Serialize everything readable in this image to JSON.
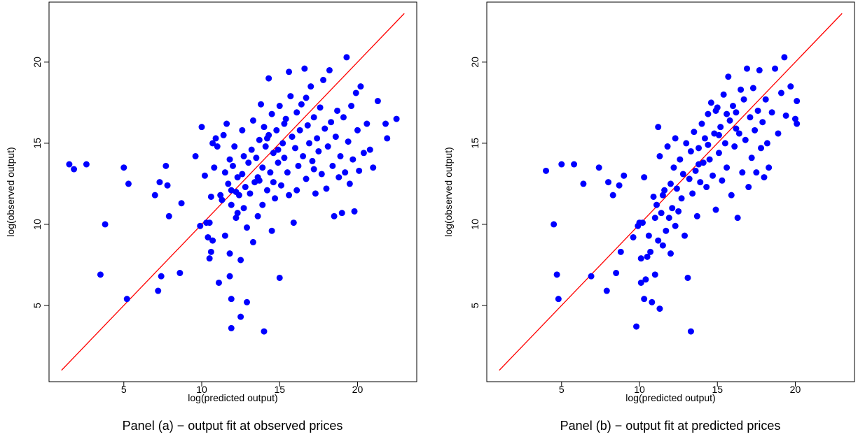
{
  "colors": {
    "points": "#0000ff",
    "fit_line": "#ff0000",
    "frame": "#000000"
  },
  "chart_data": [
    {
      "type": "scatter",
      "title": "",
      "caption": "Panel (a) − output fit at observed prices",
      "xlabel": "log(predicted output)",
      "ylabel": "log(observed output)",
      "xlim": [
        0.2,
        23.8
      ],
      "ylim": [
        0.3,
        23.7
      ],
      "xticks": [
        5,
        10,
        15,
        20
      ],
      "yticks": [
        5,
        10,
        15,
        20
      ],
      "grid": false,
      "reference_line": [
        [
          1,
          1
        ],
        [
          23,
          23
        ]
      ],
      "points": [
        [
          1.5,
          13.7
        ],
        [
          1.8,
          13.4
        ],
        [
          2.6,
          13.7
        ],
        [
          3.5,
          6.9
        ],
        [
          3.8,
          10.0
        ],
        [
          5.0,
          13.5
        ],
        [
          5.3,
          12.5
        ],
        [
          5.2,
          5.4
        ],
        [
          7.0,
          11.8
        ],
        [
          7.2,
          5.9
        ],
        [
          7.3,
          12.6
        ],
        [
          7.4,
          6.8
        ],
        [
          7.7,
          13.6
        ],
        [
          7.8,
          12.4
        ],
        [
          7.9,
          10.5
        ],
        [
          8.6,
          7.0
        ],
        [
          8.7,
          11.3
        ],
        [
          9.6,
          14.2
        ],
        [
          9.9,
          9.9
        ],
        [
          10.0,
          16.0
        ],
        [
          10.2,
          13.0
        ],
        [
          10.3,
          10.1
        ],
        [
          10.4,
          9.2
        ],
        [
          10.5,
          7.9
        ],
        [
          10.5,
          10.1
        ],
        [
          10.6,
          11.7
        ],
        [
          10.6,
          8.3
        ],
        [
          10.7,
          9.0
        ],
        [
          10.7,
          15.0
        ],
        [
          10.8,
          13.5
        ],
        [
          10.9,
          15.3
        ],
        [
          11.0,
          14.8
        ],
        [
          11.1,
          6.4
        ],
        [
          11.2,
          11.8
        ],
        [
          11.3,
          11.5
        ],
        [
          11.4,
          15.5
        ],
        [
          11.5,
          9.3
        ],
        [
          11.5,
          13.2
        ],
        [
          11.6,
          16.2
        ],
        [
          11.7,
          12.5
        ],
        [
          11.8,
          14.0
        ],
        [
          11.8,
          8.2
        ],
        [
          11.8,
          6.8
        ],
        [
          11.9,
          5.4
        ],
        [
          11.9,
          3.6
        ],
        [
          11.9,
          12.1
        ],
        [
          11.9,
          11.2
        ],
        [
          12.0,
          13.6
        ],
        [
          12.1,
          14.8
        ],
        [
          12.2,
          12.0
        ],
        [
          12.2,
          10.4
        ],
        [
          12.3,
          10.7
        ],
        [
          12.3,
          12.9
        ],
        [
          12.4,
          11.8
        ],
        [
          12.5,
          4.3
        ],
        [
          12.5,
          7.8
        ],
        [
          12.6,
          15.8
        ],
        [
          12.6,
          13.1
        ],
        [
          12.7,
          14.2
        ],
        [
          12.7,
          11.0
        ],
        [
          12.8,
          12.3
        ],
        [
          12.9,
          9.8
        ],
        [
          12.9,
          5.2
        ],
        [
          13.0,
          13.8
        ],
        [
          13.1,
          11.9
        ],
        [
          13.2,
          14.6
        ],
        [
          13.3,
          16.4
        ],
        [
          13.3,
          8.9
        ],
        [
          13.4,
          12.6
        ],
        [
          13.5,
          14.1
        ],
        [
          13.6,
          10.5
        ],
        [
          13.6,
          12.9
        ],
        [
          13.7,
          15.2
        ],
        [
          13.8,
          17.4
        ],
        [
          13.9,
          13.5
        ],
        [
          13.9,
          11.2
        ],
        [
          14.0,
          16.0
        ],
        [
          14.0,
          3.4
        ],
        [
          14.1,
          14.8
        ],
        [
          14.2,
          12.1
        ],
        [
          14.3,
          19.0
        ],
        [
          14.3,
          15.5
        ],
        [
          14.4,
          13.2
        ],
        [
          14.5,
          9.6
        ],
        [
          14.5,
          16.8
        ],
        [
          14.6,
          14.4
        ],
        [
          14.7,
          11.6
        ],
        [
          14.8,
          15.8
        ],
        [
          14.9,
          13.8
        ],
        [
          15.0,
          6.7
        ],
        [
          15.0,
          17.3
        ],
        [
          15.1,
          12.4
        ],
        [
          15.2,
          15.0
        ],
        [
          15.3,
          14.1
        ],
        [
          15.4,
          16.5
        ],
        [
          15.5,
          13.2
        ],
        [
          15.6,
          19.4
        ],
        [
          15.6,
          11.8
        ],
        [
          15.7,
          17.9
        ],
        [
          15.8,
          15.4
        ],
        [
          15.9,
          10.1
        ],
        [
          16.0,
          14.7
        ],
        [
          16.1,
          16.9
        ],
        [
          16.2,
          13.6
        ],
        [
          16.3,
          15.8
        ],
        [
          16.4,
          17.4
        ],
        [
          16.5,
          14.2
        ],
        [
          16.6,
          19.6
        ],
        [
          16.7,
          12.8
        ],
        [
          16.8,
          16.1
        ],
        [
          16.9,
          15.0
        ],
        [
          17.0,
          18.5
        ],
        [
          17.1,
          13.9
        ],
        [
          17.2,
          16.6
        ],
        [
          17.3,
          11.9
        ],
        [
          17.4,
          15.3
        ],
        [
          17.5,
          14.5
        ],
        [
          17.6,
          17.2
        ],
        [
          17.7,
          13.1
        ],
        [
          17.8,
          18.9
        ],
        [
          17.9,
          15.9
        ],
        [
          18.0,
          12.2
        ],
        [
          18.1,
          14.8
        ],
        [
          18.2,
          19.5
        ],
        [
          18.3,
          16.3
        ],
        [
          18.4,
          13.6
        ],
        [
          18.5,
          10.5
        ],
        [
          18.6,
          15.4
        ],
        [
          18.7,
          17.0
        ],
        [
          18.8,
          12.9
        ],
        [
          18.9,
          14.2
        ],
        [
          19.0,
          10.7
        ],
        [
          19.1,
          16.6
        ],
        [
          19.2,
          13.2
        ],
        [
          19.3,
          20.3
        ],
        [
          19.4,
          15.1
        ],
        [
          19.5,
          12.5
        ],
        [
          19.6,
          17.3
        ],
        [
          19.7,
          14.0
        ],
        [
          19.8,
          10.8
        ],
        [
          19.9,
          18.1
        ],
        [
          20.0,
          15.8
        ],
        [
          20.1,
          13.3
        ],
        [
          20.2,
          18.5
        ],
        [
          20.4,
          14.4
        ],
        [
          20.6,
          16.2
        ],
        [
          20.8,
          14.6
        ],
        [
          21.0,
          13.5
        ],
        [
          21.3,
          17.6
        ],
        [
          21.8,
          16.2
        ],
        [
          21.9,
          15.3
        ],
        [
          22.5,
          16.5
        ],
        [
          14.2,
          15.3
        ],
        [
          14.6,
          12.6
        ],
        [
          15.3,
          16.2
        ],
        [
          16.1,
          12.1
        ],
        [
          16.7,
          17.8
        ],
        [
          13.7,
          12.7
        ],
        [
          14.9,
          14.6
        ],
        [
          17.2,
          13.4
        ]
      ]
    },
    {
      "type": "scatter",
      "title": "",
      "caption": "Panel (b) − output fit at predicted prices",
      "xlabel": "log(predicted output)",
      "ylabel": "log(observed output)",
      "xlim": [
        0.2,
        23.8
      ],
      "ylim": [
        0.3,
        23.7
      ],
      "xticks": [
        5,
        10,
        15,
        20
      ],
      "yticks": [
        5,
        10,
        15,
        20
      ],
      "grid": false,
      "reference_line": [
        [
          1,
          1
        ],
        [
          23,
          23
        ]
      ],
      "points": [
        [
          4.0,
          13.3
        ],
        [
          4.5,
          10.0
        ],
        [
          4.7,
          6.9
        ],
        [
          4.8,
          5.4
        ],
        [
          5.0,
          13.7
        ],
        [
          5.8,
          13.7
        ],
        [
          6.4,
          12.5
        ],
        [
          6.9,
          6.8
        ],
        [
          7.4,
          13.5
        ],
        [
          7.9,
          5.9
        ],
        [
          8.0,
          12.6
        ],
        [
          8.3,
          11.8
        ],
        [
          8.5,
          7.0
        ],
        [
          8.7,
          12.4
        ],
        [
          8.8,
          8.3
        ],
        [
          9.0,
          13.0
        ],
        [
          9.6,
          9.2
        ],
        [
          9.8,
          3.7
        ],
        [
          9.9,
          9.9
        ],
        [
          10.0,
          10.1
        ],
        [
          10.1,
          7.9
        ],
        [
          10.1,
          6.4
        ],
        [
          10.2,
          10.1
        ],
        [
          10.3,
          5.4
        ],
        [
          10.3,
          12.9
        ],
        [
          10.4,
          6.6
        ],
        [
          10.5,
          8.0
        ],
        [
          10.6,
          9.3
        ],
        [
          10.7,
          8.3
        ],
        [
          10.8,
          5.2
        ],
        [
          10.9,
          11.7
        ],
        [
          11.0,
          10.4
        ],
        [
          11.0,
          6.9
        ],
        [
          11.1,
          11.2
        ],
        [
          11.2,
          16.0
        ],
        [
          11.2,
          9.0
        ],
        [
          11.3,
          14.2
        ],
        [
          11.3,
          4.8
        ],
        [
          11.4,
          10.7
        ],
        [
          11.5,
          11.8
        ],
        [
          11.5,
          8.7
        ],
        [
          11.6,
          12.1
        ],
        [
          11.7,
          9.6
        ],
        [
          11.8,
          14.8
        ],
        [
          11.9,
          10.4
        ],
        [
          12.0,
          12.5
        ],
        [
          12.0,
          8.2
        ],
        [
          12.1,
          11.0
        ],
        [
          12.2,
          13.5
        ],
        [
          12.3,
          15.3
        ],
        [
          12.3,
          9.9
        ],
        [
          12.4,
          12.2
        ],
        [
          12.5,
          10.8
        ],
        [
          12.6,
          14.0
        ],
        [
          12.7,
          11.6
        ],
        [
          12.8,
          13.1
        ],
        [
          12.9,
          9.3
        ],
        [
          13.0,
          15.0
        ],
        [
          13.1,
          6.7
        ],
        [
          13.2,
          12.8
        ],
        [
          13.3,
          3.4
        ],
        [
          13.3,
          14.5
        ],
        [
          13.4,
          11.9
        ],
        [
          13.5,
          15.7
        ],
        [
          13.6,
          13.3
        ],
        [
          13.7,
          10.5
        ],
        [
          13.8,
          14.7
        ],
        [
          13.9,
          12.6
        ],
        [
          14.0,
          16.2
        ],
        [
          14.1,
          13.8
        ],
        [
          14.2,
          15.3
        ],
        [
          14.3,
          12.3
        ],
        [
          14.4,
          16.8
        ],
        [
          14.5,
          14.0
        ],
        [
          14.6,
          17.5
        ],
        [
          14.7,
          13.0
        ],
        [
          14.8,
          15.6
        ],
        [
          14.9,
          10.9
        ],
        [
          15.0,
          17.2
        ],
        [
          15.1,
          14.4
        ],
        [
          15.2,
          16.0
        ],
        [
          15.3,
          12.7
        ],
        [
          15.4,
          18.0
        ],
        [
          15.5,
          15.0
        ],
        [
          15.6,
          13.5
        ],
        [
          15.7,
          19.1
        ],
        [
          15.8,
          16.4
        ],
        [
          15.9,
          11.8
        ],
        [
          16.0,
          17.3
        ],
        [
          16.1,
          14.8
        ],
        [
          16.2,
          16.9
        ],
        [
          16.3,
          10.4
        ],
        [
          16.4,
          15.6
        ],
        [
          16.5,
          18.3
        ],
        [
          16.6,
          13.2
        ],
        [
          16.7,
          17.7
        ],
        [
          16.8,
          15.2
        ],
        [
          16.9,
          19.6
        ],
        [
          17.0,
          12.3
        ],
        [
          17.1,
          16.6
        ],
        [
          17.2,
          14.1
        ],
        [
          17.3,
          18.4
        ],
        [
          17.4,
          15.8
        ],
        [
          17.5,
          13.2
        ],
        [
          17.6,
          17.0
        ],
        [
          17.7,
          19.5
        ],
        [
          17.8,
          14.7
        ],
        [
          17.9,
          16.3
        ],
        [
          18.0,
          12.9
        ],
        [
          18.1,
          17.7
        ],
        [
          18.2,
          15.0
        ],
        [
          18.3,
          13.5
        ],
        [
          18.5,
          16.9
        ],
        [
          18.7,
          19.6
        ],
        [
          18.9,
          15.6
        ],
        [
          19.1,
          18.1
        ],
        [
          19.3,
          20.3
        ],
        [
          19.4,
          16.7
        ],
        [
          19.7,
          18.5
        ],
        [
          20.0,
          16.5
        ],
        [
          20.1,
          17.6
        ],
        [
          20.1,
          16.2
        ],
        [
          14.9,
          17.0
        ],
        [
          15.6,
          16.8
        ],
        [
          16.2,
          15.9
        ],
        [
          14.4,
          14.9
        ],
        [
          13.8,
          13.7
        ],
        [
          15.1,
          15.5
        ]
      ]
    }
  ]
}
